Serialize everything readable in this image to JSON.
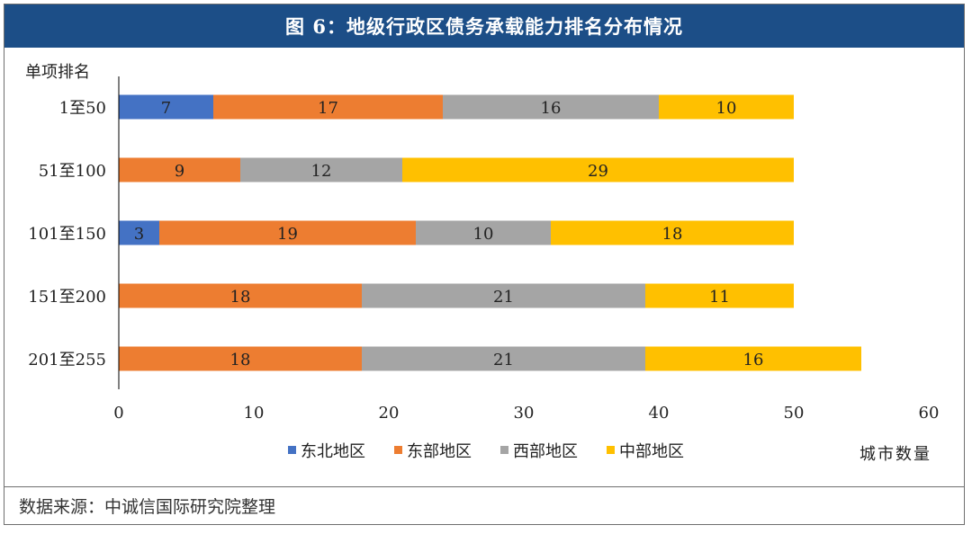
{
  "header": {
    "title": "图 6：地级行政区债务承载能力排名分布情况"
  },
  "footer": {
    "source": "数据来源：中诚信国际研究院整理"
  },
  "colors": {
    "东北地区": "#4472c4",
    "东部地区": "#ed7d31",
    "西部地区": "#a5a5a5",
    "中部地区": "#ffc000"
  },
  "chart_data": {
    "type": "bar",
    "orientation": "horizontal",
    "stacked": true,
    "ylabel": "单项排名",
    "xlabel": "城市数量",
    "categories": [
      "1至50",
      "51至100",
      "101至150",
      "151至200",
      "201至255"
    ],
    "series": [
      {
        "name": "东北地区",
        "values": [
          7,
          0,
          3,
          0,
          0
        ]
      },
      {
        "name": "东部地区",
        "values": [
          17,
          9,
          19,
          18,
          18
        ]
      },
      {
        "name": "西部地区",
        "values": [
          16,
          12,
          10,
          21,
          21
        ]
      },
      {
        "name": "中部地区",
        "values": [
          10,
          29,
          18,
          11,
          16
        ]
      }
    ],
    "xlim": [
      0,
      60
    ],
    "xticks": [
      0,
      10,
      20,
      30,
      40,
      50,
      60
    ],
    "grid": false,
    "legend": "bottom"
  }
}
